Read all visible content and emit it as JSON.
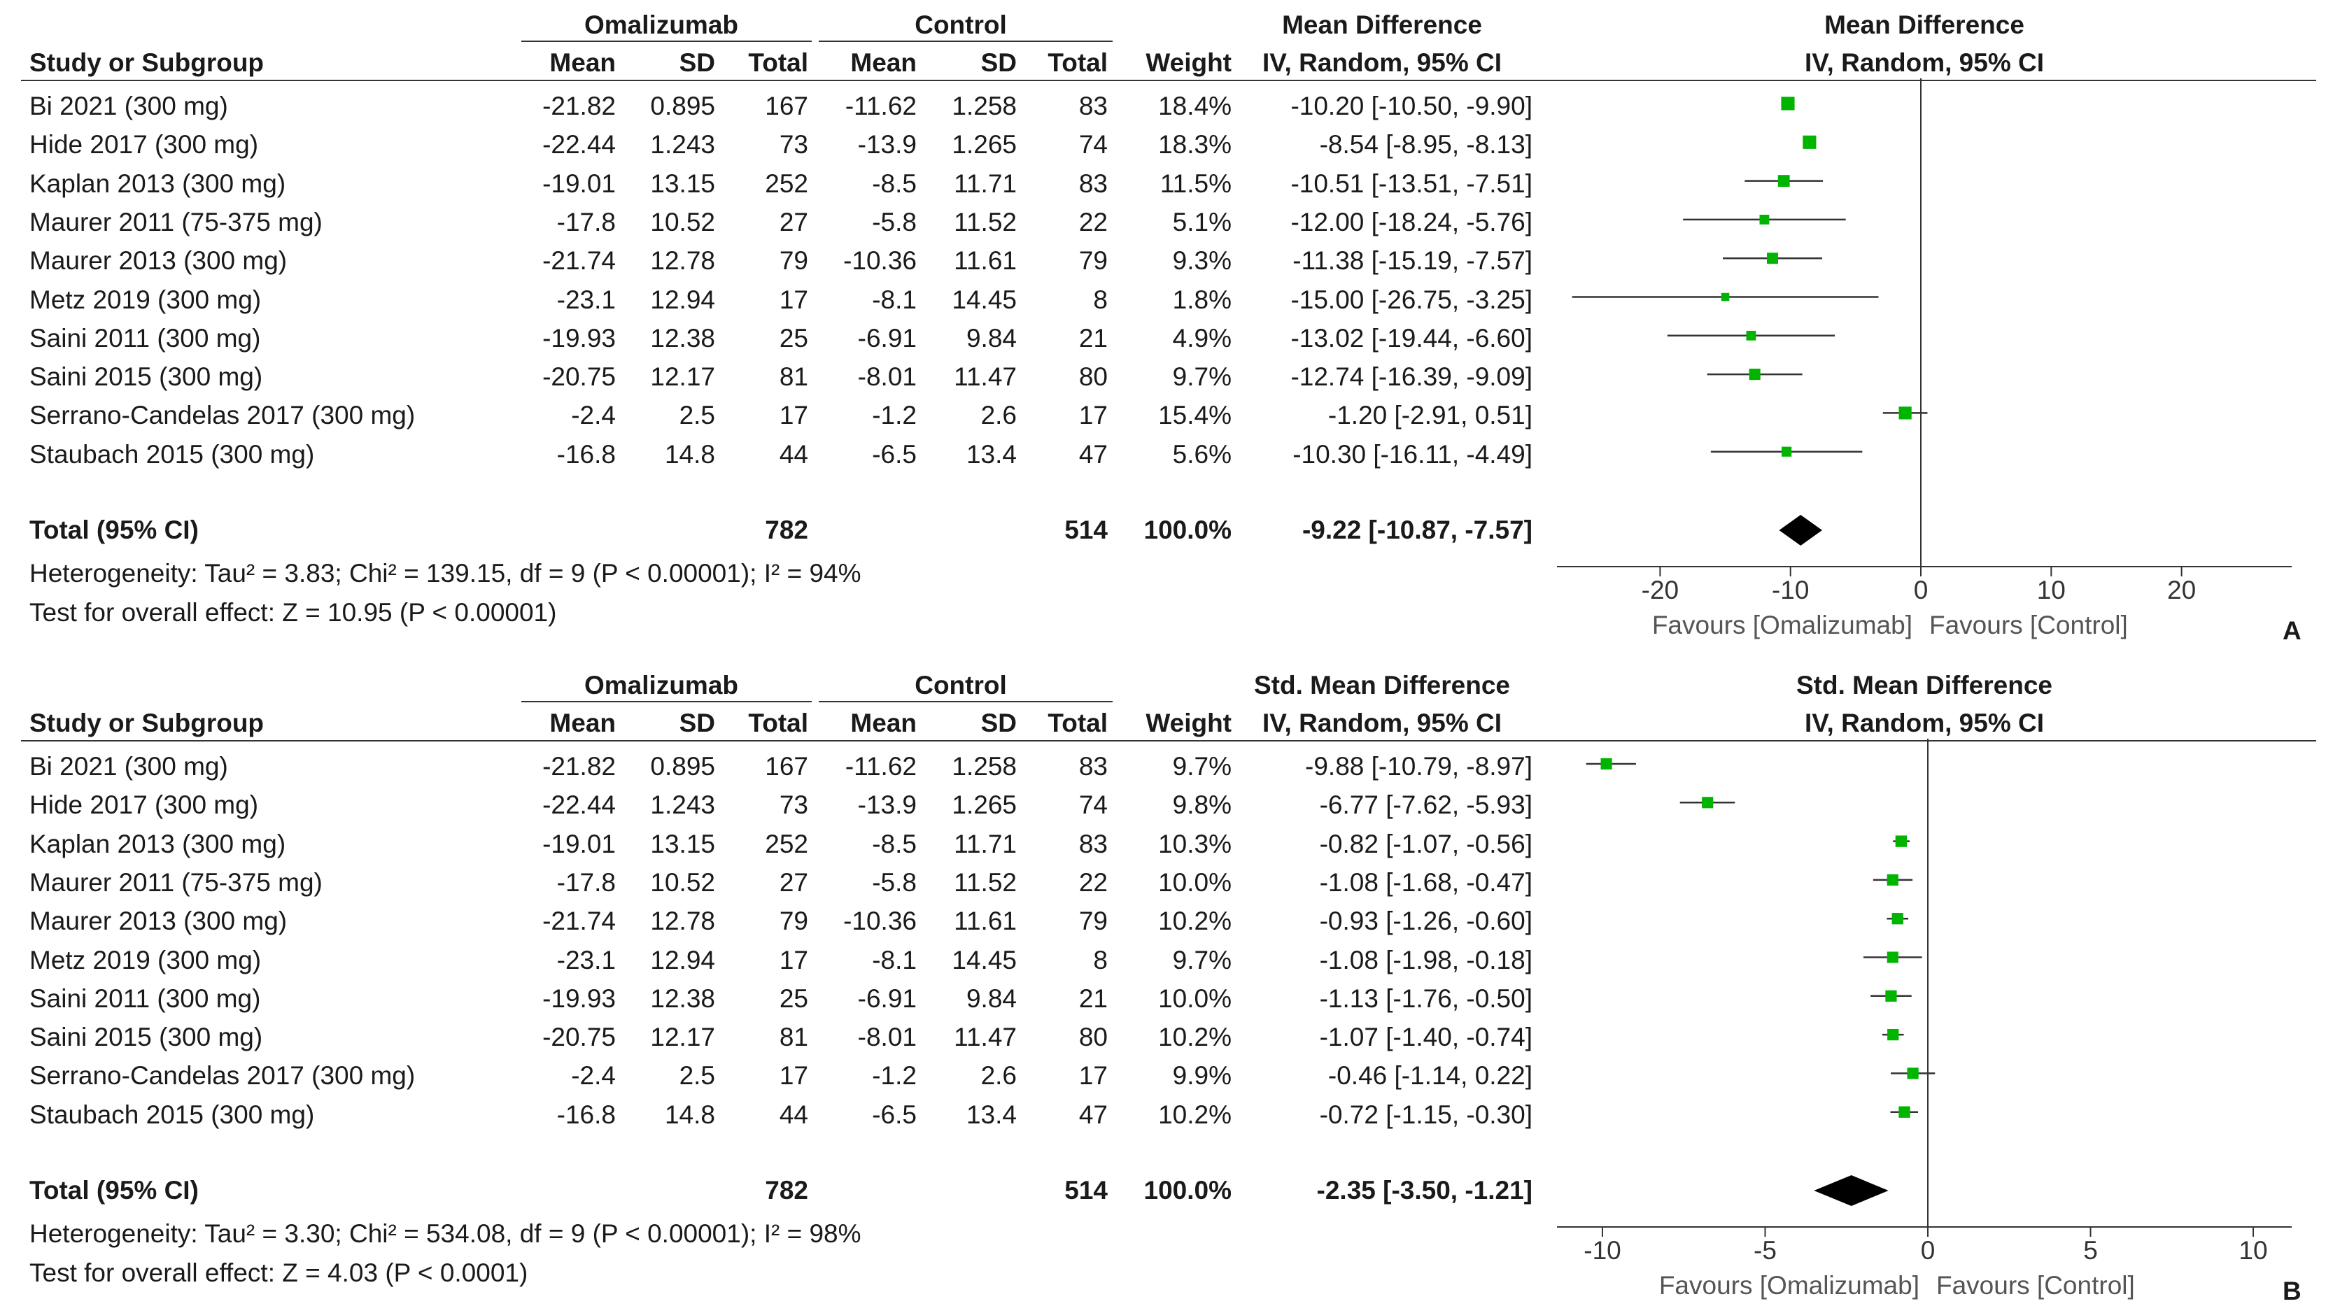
{
  "panels": [
    {
      "letter": "A",
      "group1": "Omalizumab",
      "group2": "Control",
      "effect_title": "Mean Difference",
      "effect_sub": "IV, Random, 95% CI",
      "plot_title": "Mean Difference",
      "plot_sub": "IV, Random, 95% CI",
      "col_headers": {
        "study": "Study or Subgroup",
        "mean1": "Mean",
        "sd1": "SD",
        "total1": "Total",
        "mean2": "Mean",
        "sd2": "SD",
        "total2": "Total",
        "weight": "Weight"
      },
      "rows": [
        {
          "study": "Bi 2021 (300 mg)",
          "mean1": "-21.82",
          "sd1": "0.895",
          "total1": "167",
          "mean2": "-11.62",
          "sd2": "1.258",
          "total2": "83",
          "weight": "18.4%",
          "ci": "-10.20 [-10.50, -9.90]"
        },
        {
          "study": "Hide 2017 (300 mg)",
          "mean1": "-22.44",
          "sd1": "1.243",
          "total1": "73",
          "mean2": "-13.9",
          "sd2": "1.265",
          "total2": "74",
          "weight": "18.3%",
          "ci": "-8.54 [-8.95, -8.13]"
        },
        {
          "study": "Kaplan 2013 (300 mg)",
          "mean1": "-19.01",
          "sd1": "13.15",
          "total1": "252",
          "mean2": "-8.5",
          "sd2": "11.71",
          "total2": "83",
          "weight": "11.5%",
          "ci": "-10.51 [-13.51, -7.51]"
        },
        {
          "study": "Maurer 2011 (75-375 mg)",
          "mean1": "-17.8",
          "sd1": "10.52",
          "total1": "27",
          "mean2": "-5.8",
          "sd2": "11.52",
          "total2": "22",
          "weight": "5.1%",
          "ci": "-12.00 [-18.24, -5.76]"
        },
        {
          "study": "Maurer 2013 (300 mg)",
          "mean1": "-21.74",
          "sd1": "12.78",
          "total1": "79",
          "mean2": "-10.36",
          "sd2": "11.61",
          "total2": "79",
          "weight": "9.3%",
          "ci": "-11.38 [-15.19, -7.57]"
        },
        {
          "study": "Metz 2019 (300 mg)",
          "mean1": "-23.1",
          "sd1": "12.94",
          "total1": "17",
          "mean2": "-8.1",
          "sd2": "14.45",
          "total2": "8",
          "weight": "1.8%",
          "ci": "-15.00 [-26.75, -3.25]"
        },
        {
          "study": "Saini 2011 (300 mg)",
          "mean1": "-19.93",
          "sd1": "12.38",
          "total1": "25",
          "mean2": "-6.91",
          "sd2": "9.84",
          "total2": "21",
          "weight": "4.9%",
          "ci": "-13.02 [-19.44, -6.60]"
        },
        {
          "study": "Saini 2015 (300 mg)",
          "mean1": "-20.75",
          "sd1": "12.17",
          "total1": "81",
          "mean2": "-8.01",
          "sd2": "11.47",
          "total2": "80",
          "weight": "9.7%",
          "ci": "-12.74 [-16.39, -9.09]"
        },
        {
          "study": "Serrano-Candelas 2017 (300 mg)",
          "mean1": "-2.4",
          "sd1": "2.5",
          "total1": "17",
          "mean2": "-1.2",
          "sd2": "2.6",
          "total2": "17",
          "weight": "15.4%",
          "ci": "-1.20 [-2.91, 0.51]"
        },
        {
          "study": "Staubach 2015 (300 mg)",
          "mean1": "-16.8",
          "sd1": "14.8",
          "total1": "44",
          "mean2": "-6.5",
          "sd2": "13.4",
          "total2": "47",
          "weight": "5.6%",
          "ci": "-10.30 [-16.11, -4.49]"
        }
      ],
      "total": {
        "label": "Total (95% CI)",
        "total1": "782",
        "total2": "514",
        "weight": "100.0%",
        "ci": "-9.22 [-10.87, -7.57]"
      },
      "heterogeneity": "Heterogeneity: Tau² = 3.83; Chi² = 139.15, df = 9 (P < 0.00001); I² = 94%",
      "overall": "Test for overall effect: Z = 10.95 (P < 0.00001)",
      "favours_left": "Favours [Omalizumab]",
      "favours_right": "Favours [Control]"
    },
    {
      "letter": "B",
      "group1": "Omalizumab",
      "group2": "Control",
      "effect_title": "Std. Mean Difference",
      "effect_sub": "IV, Random, 95% CI",
      "plot_title": "Std. Mean Difference",
      "plot_sub": "IV, Random, 95% CI",
      "col_headers": {
        "study": "Study or Subgroup",
        "mean1": "Mean",
        "sd1": "SD",
        "total1": "Total",
        "mean2": "Mean",
        "sd2": "SD",
        "total2": "Total",
        "weight": "Weight"
      },
      "rows": [
        {
          "study": "Bi 2021 (300 mg)",
          "mean1": "-21.82",
          "sd1": "0.895",
          "total1": "167",
          "mean2": "-11.62",
          "sd2": "1.258",
          "total2": "83",
          "weight": "9.7%",
          "ci": "-9.88 [-10.79, -8.97]"
        },
        {
          "study": "Hide 2017 (300 mg)",
          "mean1": "-22.44",
          "sd1": "1.243",
          "total1": "73",
          "mean2": "-13.9",
          "sd2": "1.265",
          "total2": "74",
          "weight": "9.8%",
          "ci": "-6.77 [-7.62, -5.93]"
        },
        {
          "study": "Kaplan 2013 (300 mg)",
          "mean1": "-19.01",
          "sd1": "13.15",
          "total1": "252",
          "mean2": "-8.5",
          "sd2": "11.71",
          "total2": "83",
          "weight": "10.3%",
          "ci": "-0.82 [-1.07, -0.56]"
        },
        {
          "study": "Maurer 2011 (75-375 mg)",
          "mean1": "-17.8",
          "sd1": "10.52",
          "total1": "27",
          "mean2": "-5.8",
          "sd2": "11.52",
          "total2": "22",
          "weight": "10.0%",
          "ci": "-1.08 [-1.68, -0.47]"
        },
        {
          "study": "Maurer 2013 (300 mg)",
          "mean1": "-21.74",
          "sd1": "12.78",
          "total1": "79",
          "mean2": "-10.36",
          "sd2": "11.61",
          "total2": "79",
          "weight": "10.2%",
          "ci": "-0.93 [-1.26, -0.60]"
        },
        {
          "study": "Metz 2019 (300 mg)",
          "mean1": "-23.1",
          "sd1": "12.94",
          "total1": "17",
          "mean2": "-8.1",
          "sd2": "14.45",
          "total2": "8",
          "weight": "9.7%",
          "ci": "-1.08 [-1.98, -0.18]"
        },
        {
          "study": "Saini 2011 (300 mg)",
          "mean1": "-19.93",
          "sd1": "12.38",
          "total1": "25",
          "mean2": "-6.91",
          "sd2": "9.84",
          "total2": "21",
          "weight": "10.0%",
          "ci": "-1.13 [-1.76, -0.50]"
        },
        {
          "study": "Saini 2015 (300 mg)",
          "mean1": "-20.75",
          "sd1": "12.17",
          "total1": "81",
          "mean2": "-8.01",
          "sd2": "11.47",
          "total2": "80",
          "weight": "10.2%",
          "ci": "-1.07 [-1.40, -0.74]"
        },
        {
          "study": "Serrano-Candelas 2017 (300 mg)",
          "mean1": "-2.4",
          "sd1": "2.5",
          "total1": "17",
          "mean2": "-1.2",
          "sd2": "2.6",
          "total2": "17",
          "weight": "9.9%",
          "ci": "-0.46 [-1.14, 0.22]"
        },
        {
          "study": "Staubach 2015 (300 mg)",
          "mean1": "-16.8",
          "sd1": "14.8",
          "total1": "44",
          "mean2": "-6.5",
          "sd2": "13.4",
          "total2": "47",
          "weight": "10.2%",
          "ci": "-0.72 [-1.15, -0.30]"
        }
      ],
      "total": {
        "label": "Total (95% CI)",
        "total1": "782",
        "total2": "514",
        "weight": "100.0%",
        "ci": "-2.35 [-3.50, -1.21]"
      },
      "heterogeneity": "Heterogeneity: Tau² = 3.30; Chi² = 534.08, df = 9 (P < 0.00001); I² = 98%",
      "overall": "Test for overall effect: Z = 4.03 (P < 0.0001)",
      "favours_left": "Favours [Omalizumab]",
      "favours_right": "Favours [Control]"
    }
  ],
  "chart_data": [
    {
      "type": "forest",
      "xlim": [
        -28,
        28
      ],
      "ticks": [
        -20,
        -10,
        0,
        10,
        20
      ],
      "marker_color": "#00b400",
      "studies": [
        {
          "name": "Bi 2021 (300 mg)",
          "est": -10.2,
          "lo": -10.5,
          "hi": -9.9,
          "weight": 18.4
        },
        {
          "name": "Hide 2017 (300 mg)",
          "est": -8.54,
          "lo": -8.95,
          "hi": -8.13,
          "weight": 18.3
        },
        {
          "name": "Kaplan 2013 (300 mg)",
          "est": -10.51,
          "lo": -13.51,
          "hi": -7.51,
          "weight": 11.5
        },
        {
          "name": "Maurer 2011 (75-375 mg)",
          "est": -12.0,
          "lo": -18.24,
          "hi": -5.76,
          "weight": 5.1
        },
        {
          "name": "Maurer 2013 (300 mg)",
          "est": -11.38,
          "lo": -15.19,
          "hi": -7.57,
          "weight": 9.3
        },
        {
          "name": "Metz 2019 (300 mg)",
          "est": -15.0,
          "lo": -26.75,
          "hi": -3.25,
          "weight": 1.8
        },
        {
          "name": "Saini 2011 (300 mg)",
          "est": -13.02,
          "lo": -19.44,
          "hi": -6.6,
          "weight": 4.9
        },
        {
          "name": "Saini 2015 (300 mg)",
          "est": -12.74,
          "lo": -16.39,
          "hi": -9.09,
          "weight": 9.7
        },
        {
          "name": "Serrano-Candelas 2017 (300 mg)",
          "est": -1.2,
          "lo": -2.91,
          "hi": 0.51,
          "weight": 15.4
        },
        {
          "name": "Staubach 2015 (300 mg)",
          "est": -10.3,
          "lo": -16.11,
          "hi": -4.49,
          "weight": 5.6
        }
      ],
      "pooled": {
        "est": -9.22,
        "lo": -10.87,
        "hi": -7.57
      }
    },
    {
      "type": "forest",
      "xlim": [
        -10.5,
        10.5
      ],
      "ticks": [
        -10,
        -5,
        0,
        5,
        10
      ],
      "marker_color": "#00b400",
      "studies": [
        {
          "name": "Bi 2021 (300 mg)",
          "est": -9.88,
          "lo": -10.79,
          "hi": -8.97,
          "weight": 9.7
        },
        {
          "name": "Hide 2017 (300 mg)",
          "est": -6.77,
          "lo": -7.62,
          "hi": -5.93,
          "weight": 9.8
        },
        {
          "name": "Kaplan 2013 (300 mg)",
          "est": -0.82,
          "lo": -1.07,
          "hi": -0.56,
          "weight": 10.3
        },
        {
          "name": "Maurer 2011 (75-375 mg)",
          "est": -1.08,
          "lo": -1.68,
          "hi": -0.47,
          "weight": 10.0
        },
        {
          "name": "Maurer 2013 (300 mg)",
          "est": -0.93,
          "lo": -1.26,
          "hi": -0.6,
          "weight": 10.2
        },
        {
          "name": "Metz 2019 (300 mg)",
          "est": -1.08,
          "lo": -1.98,
          "hi": -0.18,
          "weight": 9.7
        },
        {
          "name": "Saini 2011 (300 mg)",
          "est": -1.13,
          "lo": -1.76,
          "hi": -0.5,
          "weight": 10.0
        },
        {
          "name": "Saini 2015 (300 mg)",
          "est": -1.07,
          "lo": -1.4,
          "hi": -0.74,
          "weight": 10.2
        },
        {
          "name": "Serrano-Candelas 2017 (300 mg)",
          "est": -0.46,
          "lo": -1.14,
          "hi": 0.22,
          "weight": 9.9
        },
        {
          "name": "Staubach 2015 (300 mg)",
          "est": -0.72,
          "lo": -1.15,
          "hi": -0.3,
          "weight": 10.2
        }
      ],
      "pooled": {
        "est": -2.35,
        "lo": -3.5,
        "hi": -1.21
      }
    }
  ]
}
